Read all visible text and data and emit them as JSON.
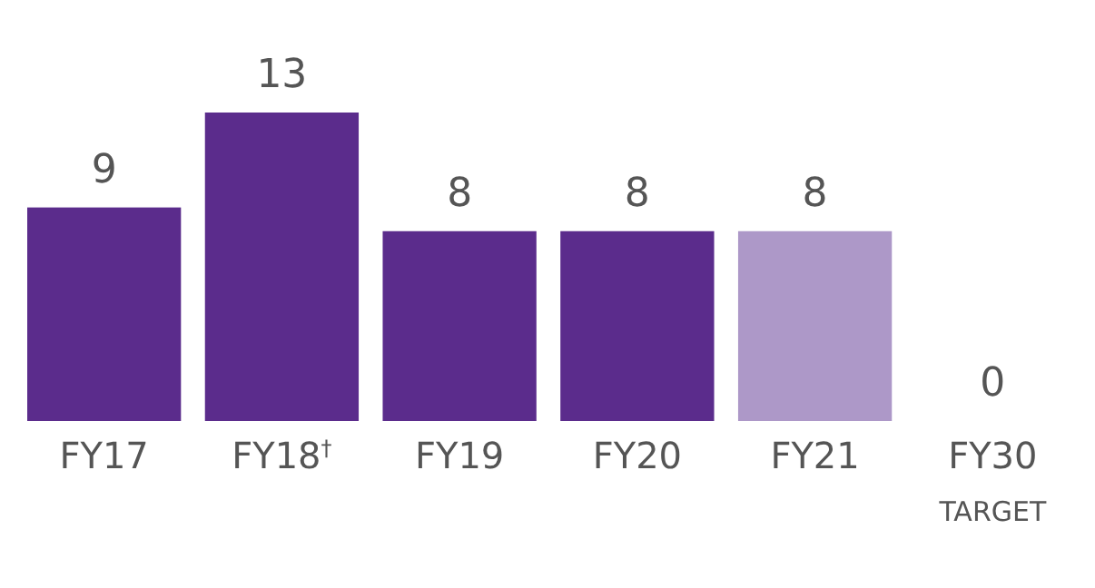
{
  "chart_data": {
    "type": "bar",
    "categories": [
      "FY17",
      "FY18$^{†}$",
      "FY19",
      "FY20",
      "FY21",
      "FY30\nTARGET"
    ],
    "values": [
      9,
      13,
      8,
      8,
      8,
      0
    ],
    "colors": [
      "#5b2c8c",
      "#5b2c8c",
      "#5b2c8c",
      "#5b2c8c",
      "#ad98c8",
      "#5b2c8c"
    ],
    "data_labels": true
  }
}
